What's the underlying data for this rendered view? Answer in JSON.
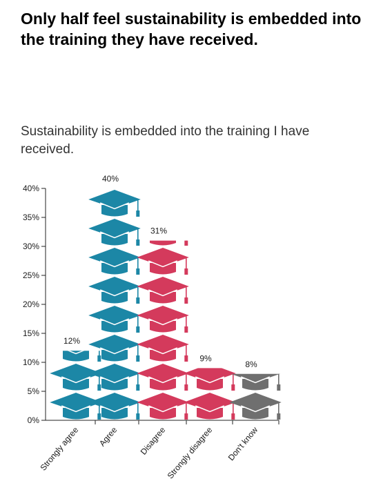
{
  "headline": "Only half feel sustainability is embedded into the training they have received.",
  "chart_data": {
    "type": "bar",
    "title": "Sustainability is embedded into the training I have received.",
    "categories": [
      "Strongly agree",
      "Agree",
      "Disagree",
      "Strongly disagree",
      "Don't know"
    ],
    "values": [
      12,
      40,
      31,
      9,
      8
    ],
    "value_labels": [
      "12%",
      "40%",
      "31%",
      "9%",
      "8%"
    ],
    "colors": [
      "#1c87a6",
      "#1c87a6",
      "#d43a5c",
      "#d43a5c",
      "#6f6f6f"
    ],
    "yticks": [
      "0%",
      "5%",
      "10%",
      "15%",
      "20%",
      "25%",
      "30%",
      "35%",
      "40%"
    ],
    "ylim": [
      0,
      40
    ],
    "unit_per_icon": 5,
    "icon": "graduation-cap-icon",
    "grid": false
  }
}
